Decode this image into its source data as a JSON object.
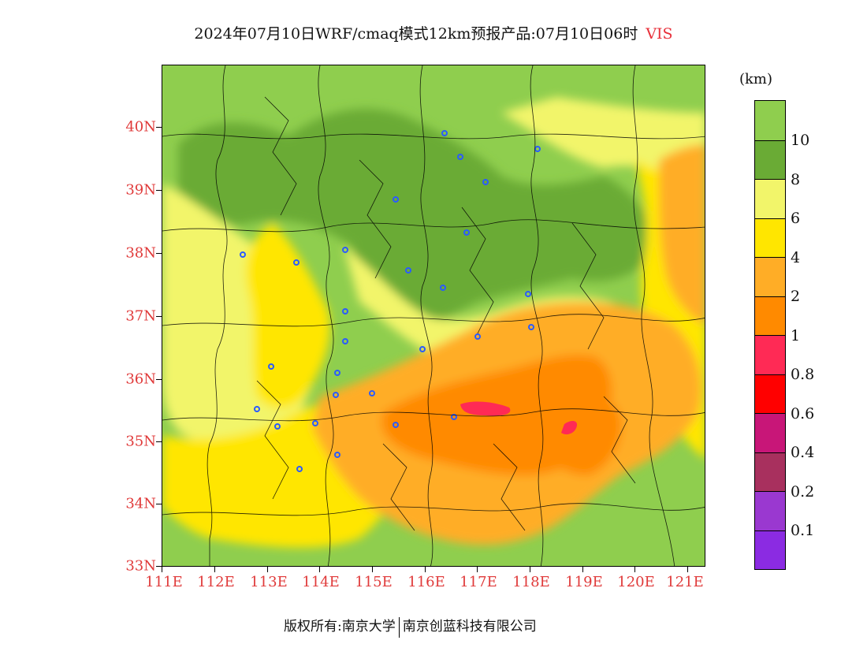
{
  "title": {
    "text": "2024年07月10日WRF/cmaq模式12km预报产品:07月10日06时",
    "variable": "VIS"
  },
  "axes": {
    "lat_labels": [
      "40N",
      "39N",
      "38N",
      "37N",
      "36N",
      "35N",
      "34N",
      "33N"
    ],
    "lon_labels": [
      "111E",
      "112E",
      "113E",
      "114E",
      "115E",
      "116E",
      "117E",
      "118E",
      "119E",
      "120E",
      "121E"
    ]
  },
  "colorbar": {
    "unit": "(km)",
    "labels": [
      "10",
      "8",
      "6",
      "4",
      "2",
      "1",
      "0.8",
      "0.6",
      "0.4",
      "0.2",
      "0.1"
    ],
    "colors": [
      "#8fce4e",
      "#6aab35",
      "#f2f56a",
      "#ffe600",
      "#ffad26",
      "#ff8a00",
      "#ff2a55",
      "#ff0000",
      "#c81678",
      "#a8305e",
      "#9a38d0",
      "#8b2be2"
    ]
  },
  "footer": {
    "left": "版权所有:南京大学",
    "right": "南京创蓝科技有限公司"
  }
}
